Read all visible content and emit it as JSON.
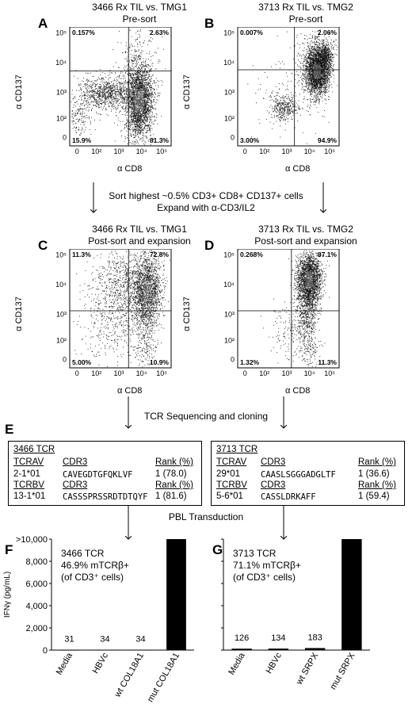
{
  "flow_panels": [
    {
      "id": "A",
      "title1": "3466 Rx TIL vs. TMG1",
      "title2": "Pre-sort",
      "ylabel": "α CD137",
      "xlabel": "α CD8",
      "q_ul": "0.157%",
      "q_ur": "2.63%",
      "q_ll": "15.9%",
      "q_lr": "81.3%",
      "xticks": [
        "0",
        "10²",
        "10³",
        "10⁴",
        "10⁵"
      ],
      "yticks": [
        "10⁵",
        "10⁴",
        "10³",
        "10²",
        "0"
      ]
    },
    {
      "id": "B",
      "title1": "3713 Rx TIL vs. TMG2",
      "title2": "Pre-sort",
      "ylabel": "α CD137",
      "xlabel": "α CD8",
      "q_ul": "0.007%",
      "q_ur": "2.06%",
      "q_ll": "3.00%",
      "q_lr": "94.9%",
      "xticks": [
        "0",
        "10²",
        "10³",
        "10⁴",
        "10⁵"
      ],
      "yticks": [
        "10⁵",
        "10⁴",
        "10³",
        "10²",
        "0"
      ]
    },
    {
      "id": "C",
      "title1": "3466 Rx TIL vs. TMG1",
      "title2": "Post-sort and expansion",
      "ylabel": "α CD137",
      "xlabel": "α CD8",
      "q_ul": "11.3%",
      "q_ur": "72.8%",
      "q_ll": "5.00%",
      "q_lr": "10.9%",
      "xticks": [
        "0",
        "10²",
        "10³",
        "10⁴",
        "10⁵"
      ],
      "yticks": [
        "10⁵",
        "10⁴",
        "10³",
        "10²",
        "0"
      ]
    },
    {
      "id": "D",
      "title1": "3713 Rx TIL vs. TMG2",
      "title2": "Post-sort and expansion",
      "ylabel": "α CD137",
      "xlabel": "α CD8",
      "q_ul": "0.268%",
      "q_ur": "87.1%",
      "q_ll": "1.32%",
      "q_lr": "11.3%",
      "xticks": [
        "0",
        "10²",
        "10³",
        "10⁴",
        "10⁵"
      ],
      "yticks": [
        "10⁵",
        "10⁴",
        "10³",
        "10²",
        "0"
      ]
    }
  ],
  "sort_text_1": "Sort highest ~0.5% CD3+ CD8+ CD137+ cells",
  "sort_text_2": "Expand with α-CD3/IL2",
  "tcr_seq_text": "TCR Sequencing and cloning",
  "panel_e_letter": "E",
  "tcr_tables": [
    {
      "name": "3466 TCR",
      "h1": [
        "TCRAV",
        "CDR3",
        "Rank (%)"
      ],
      "r1": [
        "2-1*01",
        "CAVEGDTGFQKLVF",
        "1 (78.0)"
      ],
      "h2": [
        "TCRBV",
        "CDR3",
        "Rank (%)"
      ],
      "r2": [
        "13-1*01",
        "CASSSPRSSRDTDTQYF",
        "1 (81.6)"
      ]
    },
    {
      "name": "3713 TCR",
      "h1": [
        "TCRAV",
        "CDR3",
        "Rank (%)"
      ],
      "r1": [
        "29*01",
        "CAASLSGGGADGLTF",
        "1 (36.6)"
      ],
      "h2": [
        "TCRBV",
        "CDR3",
        "Rank (%)"
      ],
      "r2": [
        "5-6*01",
        "CASSLDRKAFF",
        "1 (59.4)"
      ]
    }
  ],
  "pbl_text": "PBL Transduction",
  "chart_data": [
    {
      "type": "bar",
      "panel": "F",
      "categories": [
        "Media",
        "HBVc",
        "wt COL18A1",
        "mut COL18A1"
      ],
      "values": [
        31,
        34,
        34,
        10000
      ],
      "value_labels": [
        "31",
        "34",
        "34",
        ""
      ],
      "ylabel": "IFNγ (pg/mL)",
      "yticks": [
        "0",
        "2,000",
        "4,000",
        "6,000",
        "8,000",
        ">10,000"
      ],
      "ylim": [
        0,
        10000
      ],
      "annotation": [
        "3466 TCR",
        "46.9% mTCRβ+",
        "(of CD3⁺ cells)"
      ]
    },
    {
      "type": "bar",
      "panel": "G",
      "categories": [
        "Media",
        "HBVc",
        "wt SRPX",
        "mut SRPX"
      ],
      "values": [
        126,
        134,
        183,
        10000
      ],
      "value_labels": [
        "126",
        "134",
        "183",
        ""
      ],
      "ylabel": "",
      "yticks": [],
      "ylim": [
        0,
        10000
      ],
      "annotation": [
        "3713 TCR",
        "71.1% mTCRβ+",
        "(of CD3⁺ cells)"
      ]
    }
  ]
}
